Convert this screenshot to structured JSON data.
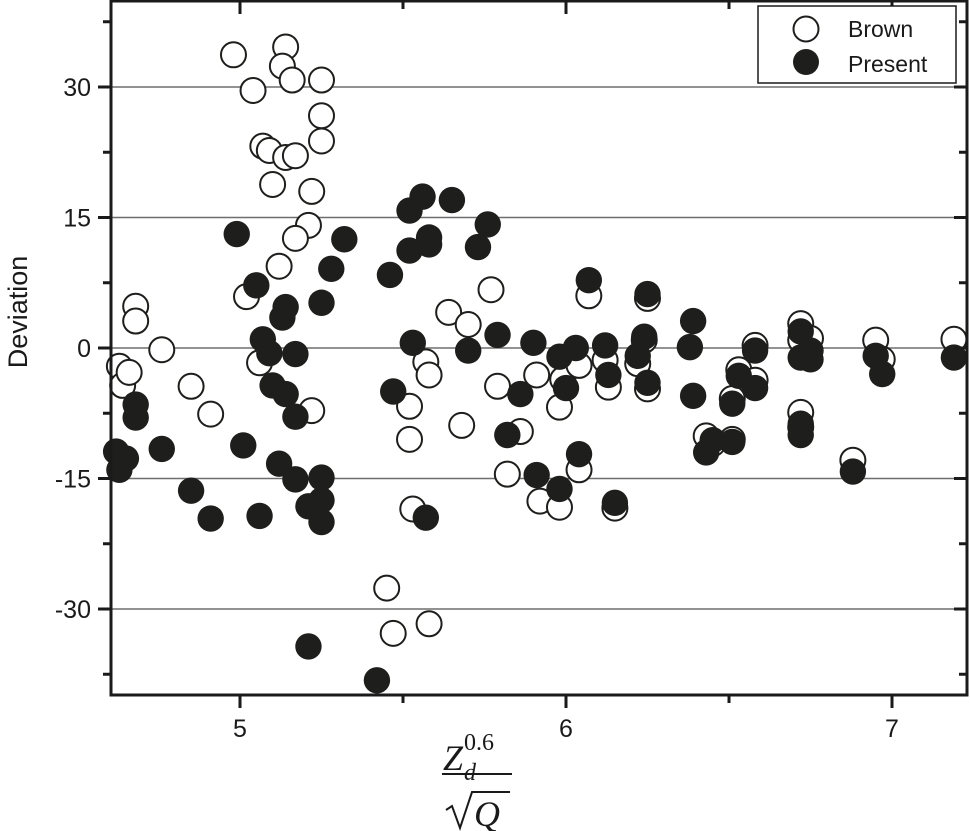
{
  "chart_data": {
    "type": "scatter",
    "title": "",
    "xlabel": "Z_d^0.6 / sqrt(Q)",
    "xlabel_parts": {
      "numerator_base": "Z",
      "numerator_sub": "d",
      "numerator_sup": "0.6",
      "denominator": "Q"
    },
    "ylabel": "Deviation",
    "xlim": [
      4.6,
      7.23
    ],
    "ylim": [
      -40,
      40
    ],
    "x_ticks": [
      5,
      6,
      7
    ],
    "x_minor_ticks": [
      5.5,
      6.5
    ],
    "y_ticks": [
      30,
      15,
      0,
      -15,
      -30
    ],
    "y_tick_labels": [
      "30",
      "15",
      "0",
      "-15",
      "-30"
    ],
    "y_minor_ticks": [
      37.5,
      22.5,
      7.5,
      -7.5,
      -22.5,
      -37.5
    ],
    "grid": {
      "horizontal": true,
      "vertical": false,
      "lines_at": [
        30,
        15,
        0,
        -15,
        -30
      ]
    },
    "legend": {
      "position": "top-right",
      "entries": [
        {
          "label": "Brown",
          "marker": "open-circle"
        },
        {
          "label": "Present",
          "marker": "filled-circle"
        }
      ]
    },
    "series": [
      {
        "name": "Brown",
        "marker": "open-circle",
        "points": [
          [
            4.98,
            33.7
          ],
          [
            5.14,
            34.6
          ],
          [
            5.13,
            32.4
          ],
          [
            5.04,
            29.6
          ],
          [
            5.16,
            30.8
          ],
          [
            5.25,
            30.8
          ],
          [
            5.25,
            26.7
          ],
          [
            5.25,
            23.8
          ],
          [
            5.07,
            23.2
          ],
          [
            5.09,
            22.7
          ],
          [
            5.14,
            21.9
          ],
          [
            5.17,
            22.1
          ],
          [
            5.22,
            18.0
          ],
          [
            5.1,
            18.8
          ],
          [
            5.21,
            14.1
          ],
          [
            5.17,
            12.6
          ],
          [
            5.12,
            9.4
          ],
          [
            5.02,
            5.9
          ],
          [
            5.06,
            -1.7
          ],
          [
            5.22,
            -7.2
          ],
          [
            4.68,
            4.8
          ],
          [
            4.68,
            3.1
          ],
          [
            4.76,
            -0.2
          ],
          [
            4.63,
            -2.1
          ],
          [
            4.64,
            -4.3
          ],
          [
            4.66,
            -2.8
          ],
          [
            4.85,
            -4.4
          ],
          [
            4.91,
            -7.6
          ],
          [
            5.64,
            4.1
          ],
          [
            5.7,
            2.7
          ],
          [
            5.77,
            6.7
          ],
          [
            5.79,
            -4.4
          ],
          [
            5.57,
            -1.6
          ],
          [
            5.58,
            -3.1
          ],
          [
            5.52,
            -6.7
          ],
          [
            5.52,
            -10.5
          ],
          [
            5.68,
            -8.9
          ],
          [
            5.82,
            -14.5
          ],
          [
            5.86,
            -9.6
          ],
          [
            5.92,
            -17.6
          ],
          [
            5.98,
            -18.3
          ],
          [
            5.91,
            -3.1
          ],
          [
            5.98,
            -6.8
          ],
          [
            5.99,
            -3.6
          ],
          [
            6.04,
            -2.0
          ],
          [
            6.04,
            -14.0
          ],
          [
            6.07,
            6.0
          ],
          [
            6.12,
            -1.4
          ],
          [
            6.13,
            -4.5
          ],
          [
            6.15,
            -18.4
          ],
          [
            6.22,
            -1.8
          ],
          [
            6.24,
            0.9
          ],
          [
            6.25,
            -4.7
          ],
          [
            6.25,
            5.7
          ],
          [
            5.53,
            -18.5
          ],
          [
            5.45,
            -27.6
          ],
          [
            5.47,
            -32.8
          ],
          [
            5.58,
            -31.7
          ],
          [
            6.43,
            -10.1
          ],
          [
            6.45,
            -11.0
          ],
          [
            6.51,
            -5.8
          ],
          [
            6.51,
            -10.5
          ],
          [
            6.53,
            -2.5
          ],
          [
            6.58,
            0.3
          ],
          [
            6.58,
            -3.7
          ],
          [
            6.72,
            2.8
          ],
          [
            6.72,
            -7.4
          ],
          [
            6.72,
            -9.1
          ],
          [
            6.72,
            0.9
          ],
          [
            6.75,
            1.1
          ],
          [
            6.88,
            -12.9
          ],
          [
            6.95,
            0.9
          ],
          [
            6.97,
            -1.3
          ],
          [
            7.19,
            1.0
          ]
        ]
      },
      {
        "name": "Present",
        "marker": "filled-circle",
        "points": [
          [
            4.99,
            13.1
          ],
          [
            5.05,
            7.2
          ],
          [
            5.14,
            4.7
          ],
          [
            5.13,
            3.5
          ],
          [
            5.07,
            1.0
          ],
          [
            5.09,
            -0.6
          ],
          [
            5.17,
            -0.7
          ],
          [
            5.1,
            -4.3
          ],
          [
            5.14,
            -5.3
          ],
          [
            5.17,
            -7.9
          ],
          [
            5.25,
            5.2
          ],
          [
            5.28,
            9.1
          ],
          [
            5.32,
            12.5
          ],
          [
            5.01,
            -11.2
          ],
          [
            5.12,
            -13.3
          ],
          [
            5.17,
            -15.1
          ],
          [
            5.21,
            -18.2
          ],
          [
            5.25,
            -14.9
          ],
          [
            5.25,
            -17.5
          ],
          [
            5.25,
            -20.0
          ],
          [
            5.06,
            -19.3
          ],
          [
            5.21,
            -34.3
          ],
          [
            4.68,
            -6.5
          ],
          [
            4.68,
            -8.0
          ],
          [
            4.76,
            -11.6
          ],
          [
            4.62,
            -11.9
          ],
          [
            4.65,
            -12.7
          ],
          [
            4.63,
            -14.0
          ],
          [
            4.85,
            -16.4
          ],
          [
            4.91,
            -19.6
          ],
          [
            5.46,
            8.4
          ],
          [
            5.52,
            15.8
          ],
          [
            5.56,
            17.4
          ],
          [
            5.65,
            17.0
          ],
          [
            5.52,
            11.2
          ],
          [
            5.58,
            11.9
          ],
          [
            5.58,
            12.7
          ],
          [
            5.73,
            11.6
          ],
          [
            5.76,
            14.2
          ],
          [
            5.53,
            0.6
          ],
          [
            5.47,
            -5.0
          ],
          [
            5.57,
            -19.5
          ],
          [
            5.7,
            -0.3
          ],
          [
            5.79,
            1.5
          ],
          [
            5.82,
            -10.0
          ],
          [
            5.86,
            -5.3
          ],
          [
            5.9,
            0.6
          ],
          [
            5.91,
            -14.6
          ],
          [
            5.98,
            -16.2
          ],
          [
            5.98,
            -1.0
          ],
          [
            6.0,
            -4.6
          ],
          [
            6.03,
            0.0
          ],
          [
            6.04,
            -12.2
          ],
          [
            6.07,
            7.8
          ],
          [
            6.12,
            0.3
          ],
          [
            6.13,
            -3.1
          ],
          [
            6.15,
            -17.8
          ],
          [
            6.22,
            -0.9
          ],
          [
            6.24,
            1.3
          ],
          [
            6.25,
            -4.0
          ],
          [
            6.25,
            6.2
          ],
          [
            5.42,
            -38.2
          ],
          [
            6.38,
            0.1
          ],
          [
            6.39,
            3.1
          ],
          [
            6.39,
            -5.5
          ],
          [
            6.43,
            -12.0
          ],
          [
            6.45,
            -10.6
          ],
          [
            6.51,
            -6.4
          ],
          [
            6.51,
            -10.8
          ],
          [
            6.53,
            -3.2
          ],
          [
            6.58,
            -0.3
          ],
          [
            6.58,
            -4.6
          ],
          [
            6.72,
            1.9
          ],
          [
            6.72,
            -1.1
          ],
          [
            6.72,
            -8.7
          ],
          [
            6.72,
            -10.0
          ],
          [
            6.75,
            -0.3
          ],
          [
            6.75,
            -1.3
          ],
          [
            6.88,
            -14.2
          ],
          [
            6.95,
            -0.9
          ],
          [
            6.97,
            -3.0
          ],
          [
            7.19,
            -1.1
          ]
        ]
      }
    ]
  },
  "colors": {
    "axis": "#1a1a1a",
    "gridline": "#6e6e6e",
    "marker_fill_present": "#1e1e1c",
    "marker_fill_brown": "#ffffff",
    "marker_stroke": "#1e1e1c",
    "background": "#ffffff"
  }
}
